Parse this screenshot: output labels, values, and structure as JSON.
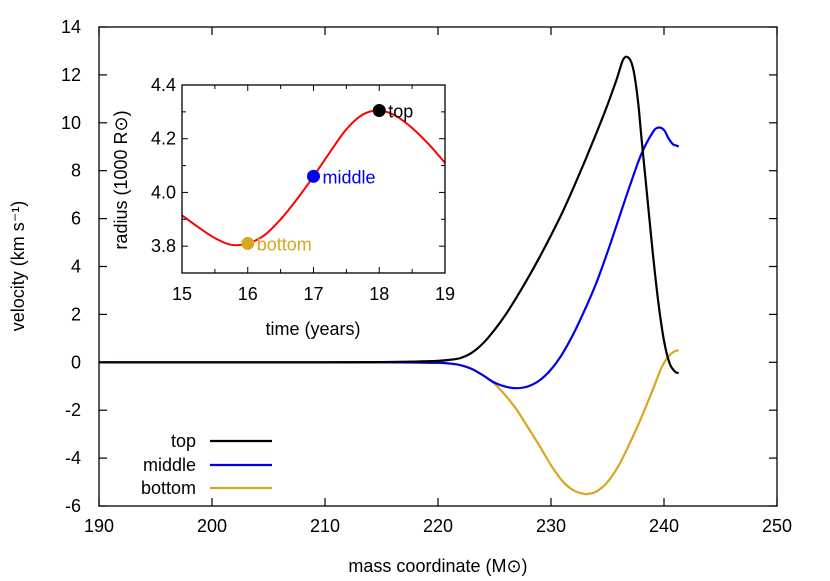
{
  "chart_data": [
    {
      "type": "line",
      "title": "",
      "xlabel": "mass coordinate (M⊙)",
      "ylabel": "velocity (km s⁻¹)",
      "xlim": [
        190,
        250
      ],
      "ylim": [
        -6,
        14
      ],
      "xticks": [
        190,
        200,
        210,
        220,
        230,
        240,
        250
      ],
      "yticks": [
        -6,
        -4,
        -2,
        0,
        2,
        4,
        6,
        8,
        10,
        12,
        14
      ],
      "grid": false,
      "legend_position": "lower left",
      "series": [
        {
          "name": "top",
          "color": "#000000",
          "x": [
            190,
            200,
            210,
            215,
            218,
            220,
            221,
            222,
            223,
            224,
            225,
            226,
            227,
            228,
            229,
            230,
            231,
            232,
            233,
            234,
            235,
            235.8,
            236.4,
            236.9,
            237.3,
            237.7,
            238.0,
            238.5,
            239.0,
            239.5,
            240.0,
            240.5,
            241.0,
            241.3
          ],
          "y": [
            0,
            0,
            0,
            0.01,
            0.03,
            0.06,
            0.1,
            0.18,
            0.4,
            0.8,
            1.35,
            2.0,
            2.75,
            3.55,
            4.4,
            5.3,
            6.25,
            7.3,
            8.4,
            9.55,
            10.75,
            11.8,
            12.65,
            12.7,
            12.2,
            10.9,
            9.4,
            7.0,
            4.6,
            2.5,
            0.9,
            -0.05,
            -0.4,
            -0.45
          ]
        },
        {
          "name": "middle",
          "color": "#0000ee",
          "x": [
            190,
            200,
            210,
            215,
            218,
            220,
            221,
            222,
            223,
            224,
            225,
            226,
            227,
            228,
            229,
            230,
            231,
            232,
            233,
            234,
            235,
            236,
            237,
            238,
            239,
            239.5,
            240.0,
            240.4,
            240.8,
            241.1,
            241.3
          ],
          "y": [
            0,
            0,
            0,
            0,
            -0.01,
            -0.02,
            -0.05,
            -0.12,
            -0.28,
            -0.55,
            -0.85,
            -1.02,
            -1.08,
            -1.0,
            -0.75,
            -0.3,
            0.35,
            1.2,
            2.2,
            3.3,
            4.6,
            6.0,
            7.4,
            8.7,
            9.6,
            9.8,
            9.7,
            9.35,
            9.1,
            9.05,
            9.0
          ]
        },
        {
          "name": "bottom",
          "color": "#daa520",
          "x": [
            190,
            200,
            210,
            215,
            218,
            220,
            221,
            222,
            223,
            224,
            225,
            226,
            227,
            228,
            229,
            230,
            231,
            232,
            233,
            233.2,
            234,
            235,
            236,
            237,
            238,
            239,
            239.8,
            240.4,
            240.9,
            241.3
          ],
          "y": [
            0,
            0,
            0,
            0,
            -0.01,
            -0.02,
            -0.05,
            -0.12,
            -0.28,
            -0.55,
            -0.9,
            -1.4,
            -2.0,
            -2.75,
            -3.5,
            -4.3,
            -4.95,
            -5.35,
            -5.5,
            -5.5,
            -5.4,
            -5.0,
            -4.3,
            -3.35,
            -2.3,
            -1.15,
            -0.2,
            0.25,
            0.45,
            0.5
          ]
        }
      ],
      "legend": [
        {
          "label": "top",
          "color": "#000000"
        },
        {
          "label": "middle",
          "color": "#0000ee"
        },
        {
          "label": "bottom",
          "color": "#daa520"
        }
      ]
    },
    {
      "type": "line",
      "title": "inset",
      "xlabel": "time (years)",
      "ylabel": "radius (1000 R⊙)",
      "xlim": [
        15,
        19
      ],
      "ylim": [
        3.7,
        4.4
      ],
      "xticks": [
        15,
        16,
        17,
        18,
        19
      ],
      "yticks": [
        3.8,
        4.0,
        4.2,
        4.4
      ],
      "grid": false,
      "series": [
        {
          "name": "radius",
          "color": "#ff0000",
          "x": [
            15.0,
            15.25,
            15.5,
            15.75,
            16.0,
            16.25,
            16.5,
            16.75,
            17.0,
            17.25,
            17.5,
            17.75,
            18.0,
            18.25,
            18.5,
            18.75,
            19.0
          ],
          "y": [
            3.915,
            3.87,
            3.83,
            3.805,
            3.81,
            3.84,
            3.9,
            3.975,
            4.06,
            4.15,
            4.235,
            4.29,
            4.305,
            4.285,
            4.24,
            4.18,
            4.11
          ]
        }
      ],
      "markers": [
        {
          "label": "bottom",
          "x": 16.0,
          "y": 3.81,
          "color": "#daa520"
        },
        {
          "label": "middle",
          "x": 17.0,
          "y": 4.06,
          "color": "#0000ee"
        },
        {
          "label": "top",
          "x": 18.0,
          "y": 4.305,
          "color": "#000000"
        }
      ]
    }
  ]
}
